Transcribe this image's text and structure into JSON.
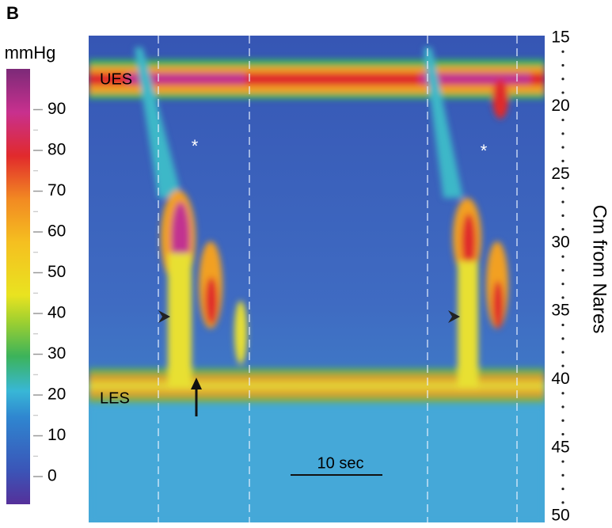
{
  "panel_label": "B",
  "colorbar": {
    "unit": "mmHg",
    "ticks": [
      0,
      10,
      20,
      30,
      40,
      50,
      60,
      70,
      80,
      90
    ]
  },
  "axis": {
    "label": "Cm from Nares",
    "ticks": [
      15,
      20,
      25,
      30,
      35,
      40,
      45,
      50
    ]
  },
  "annotations": {
    "ues": "UES",
    "les": "LES",
    "asterisks": [
      "*",
      "*"
    ],
    "scale_bar": "10 sec"
  }
}
